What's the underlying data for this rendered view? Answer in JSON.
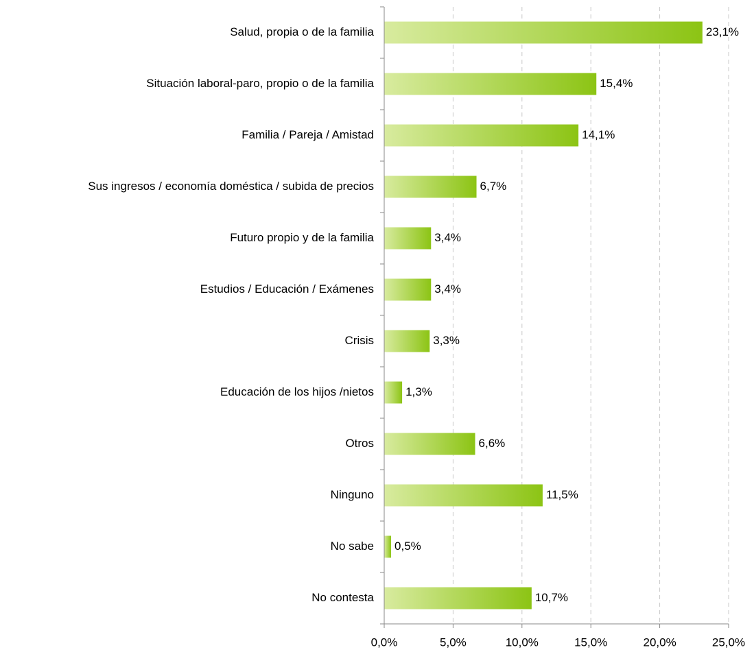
{
  "chart_data": {
    "type": "hbar",
    "categories": [
      "Salud, propia o de la familia",
      "Situación laboral-paro, propio o de la familia",
      "Familia / Pareja / Amistad",
      "Sus ingresos / economía doméstica / subida de precios",
      "Futuro propio y de la familia",
      "Estudios / Educación / Exámenes",
      "Crisis",
      "Educación de los hijos /nietos",
      "Otros",
      "Ninguno",
      "No sabe",
      "No contesta"
    ],
    "values": [
      23.1,
      15.4,
      14.1,
      6.7,
      3.4,
      3.4,
      3.3,
      1.3,
      6.6,
      11.5,
      0.5,
      10.7
    ],
    "value_labels": [
      "23,1%",
      "15,4%",
      "14,1%",
      "6,7%",
      "3,4%",
      "3,4%",
      "3,3%",
      "1,3%",
      "6,6%",
      "11,5%",
      "0,5%",
      "10,7%"
    ],
    "xlim": [
      0,
      25
    ],
    "xticks": [
      {
        "value": 0,
        "label": "0,0%"
      },
      {
        "value": 5,
        "label": "5,0%"
      },
      {
        "value": 10,
        "label": "10,0%"
      },
      {
        "value": 15,
        "label": "15,0%"
      },
      {
        "value": 20,
        "label": "20,0%"
      },
      {
        "value": 25,
        "label": "25,0%"
      }
    ],
    "grid": true,
    "colors": [
      "#d8eb9f",
      "#8cc414"
    ]
  }
}
